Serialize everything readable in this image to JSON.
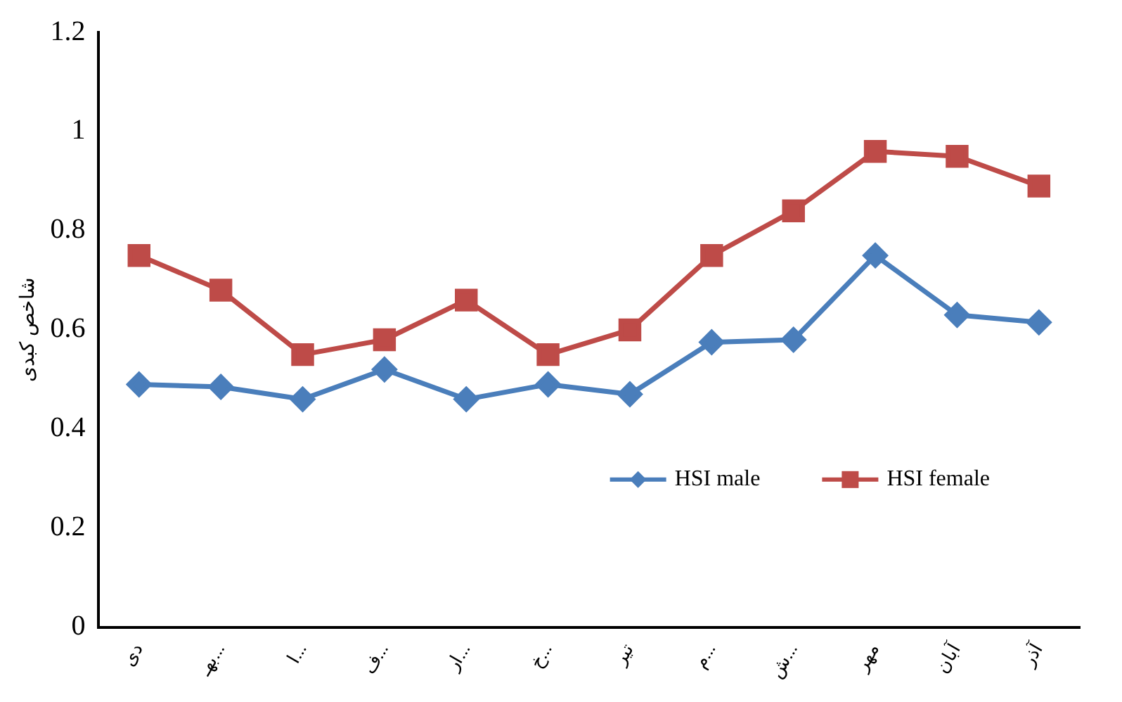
{
  "chart_data": {
    "type": "line",
    "ylabel": "شاخص کبدی",
    "categories": [
      "دی",
      "بهـ...",
      "ا...",
      "ف...",
      "ار...",
      "خ...",
      "تیر",
      "م...",
      "ش...",
      "مهر",
      "آبان",
      "آذر"
    ],
    "series": [
      {
        "name": "HSI male",
        "color": "#4a7ebb",
        "marker": "diamond",
        "values": [
          0.49,
          0.485,
          0.46,
          0.52,
          0.46,
          0.49,
          0.47,
          0.575,
          0.58,
          0.75,
          0.63,
          0.615
        ]
      },
      {
        "name": "HSI female",
        "color": "#be4b48",
        "marker": "square",
        "values": [
          0.75,
          0.68,
          0.55,
          0.58,
          0.66,
          0.55,
          0.6,
          0.75,
          0.84,
          0.96,
          0.95,
          0.89
        ]
      }
    ],
    "ylim": [
      0,
      1.2
    ],
    "yticks": [
      0,
      0.2,
      0.4,
      0.6,
      0.8,
      1,
      1.2
    ],
    "grid": false,
    "legend": "bottom right"
  }
}
